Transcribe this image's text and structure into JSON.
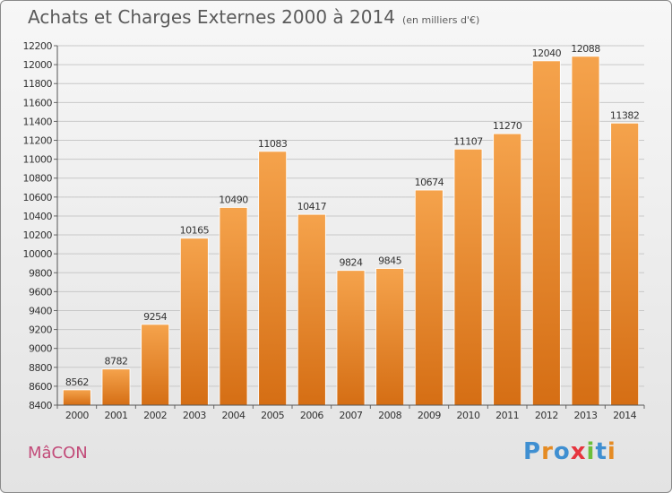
{
  "header": {
    "title": "Achats et Charges Externes 2000 à 2014",
    "subtitle": "(en milliers d'€)"
  },
  "footer": {
    "city": "MâCON",
    "logo_text": "Proxiti"
  },
  "colors": {
    "bar_top": "#f5a34c",
    "bar_bottom": "#d56e14",
    "city": "#c24b79",
    "logo": [
      "#3f8fd1",
      "#e58b23",
      "#3f8fd1",
      "#e6353f",
      "#6bbf3a",
      "#3f8fd1",
      "#e58b23"
    ]
  },
  "chart_data": {
    "type": "bar",
    "title": "Achats et Charges Externes 2000 à 2014",
    "subtitle": "(en milliers d'€)",
    "categories": [
      "2000",
      "2001",
      "2002",
      "2003",
      "2004",
      "2005",
      "2006",
      "2007",
      "2008",
      "2009",
      "2010",
      "2011",
      "2012",
      "2013",
      "2014"
    ],
    "values": [
      8562,
      8782,
      9254,
      10165,
      10490,
      11083,
      10417,
      9824,
      9845,
      10674,
      11107,
      11270,
      12040,
      12088,
      11382
    ],
    "ylim": [
      8400,
      12200
    ],
    "ytick_step": 200,
    "grid": true,
    "xlabel": "",
    "ylabel": ""
  }
}
